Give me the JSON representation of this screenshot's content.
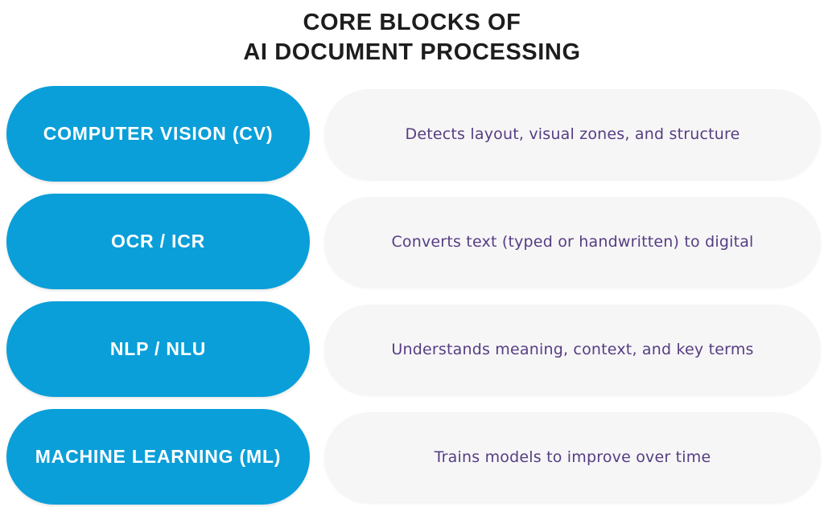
{
  "title": {
    "line1": "CORE BLOCKS OF",
    "line2": "AI DOCUMENT PROCESSING"
  },
  "colors": {
    "block_blue": "#0a9fd9",
    "pill_gray": "#f6f6f7",
    "description_purple": "#563d82",
    "title_dark": "#1d1d1d",
    "background": "#ffffff"
  },
  "rows": [
    {
      "label": "COMPUTER VISION (CV)",
      "description": "Detects layout, visual zones, and structure"
    },
    {
      "label": "OCR / ICR",
      "description": "Converts text (typed or handwritten) to digital"
    },
    {
      "label": "NLP / NLU",
      "description": "Understands meaning, context, and key terms"
    },
    {
      "label": "MACHINE LEARNING (ML)",
      "description": "Trains models to improve over time"
    }
  ]
}
